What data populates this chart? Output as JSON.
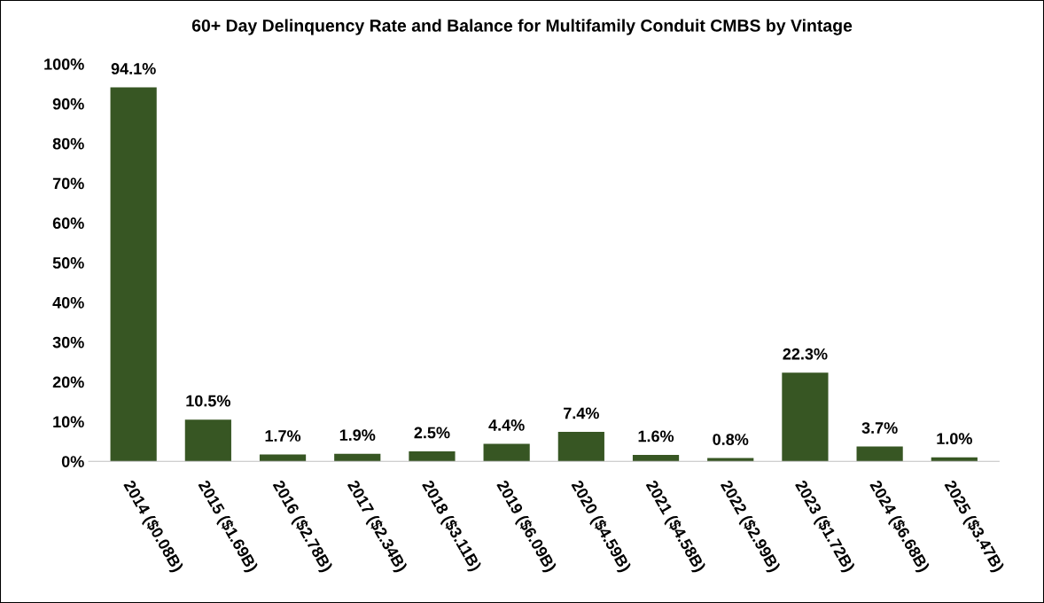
{
  "chart_data": {
    "type": "bar",
    "title": "60+ Day Delinquency Rate and Balance for Multifamily Conduit CMBS by Vintage",
    "categories": [
      "2014 ($0.08B)",
      "2015 ($1.69B)",
      "2016 ($2.78B)",
      "2017 ($2.34B)",
      "2018 ($3.11B)",
      "2019 ($6.09B)",
      "2020 ($4.59B)",
      "2021 ($4.58B)",
      "2022 ($2.99B)",
      "2023 ($1.72B)",
      "2024 ($6.68B)",
      "2025 ($3.47B)"
    ],
    "values": [
      94.1,
      10.5,
      1.7,
      1.9,
      2.5,
      4.4,
      7.4,
      1.6,
      0.8,
      22.3,
      3.7,
      1.0
    ],
    "value_labels": [
      "94.1%",
      "10.5%",
      "1.7%",
      "1.9%",
      "2.5%",
      "4.4%",
      "7.4%",
      "1.6%",
      "0.8%",
      "22.3%",
      "3.7%",
      "1.0%"
    ],
    "color": "#375623",
    "ylim": [
      0,
      100
    ],
    "yticks": [
      {
        "value": 0,
        "label": "0%"
      },
      {
        "value": 10,
        "label": "10%"
      },
      {
        "value": 20,
        "label": "20%"
      },
      {
        "value": 30,
        "label": "30%"
      },
      {
        "value": 40,
        "label": "40%"
      },
      {
        "value": 50,
        "label": "50%"
      },
      {
        "value": 60,
        "label": "60%"
      },
      {
        "value": 70,
        "label": "70%"
      },
      {
        "value": 80,
        "label": "80%"
      },
      {
        "value": 90,
        "label": "90%"
      },
      {
        "value": 100,
        "label": "100%"
      }
    ],
    "grid": false,
    "legend": false
  }
}
